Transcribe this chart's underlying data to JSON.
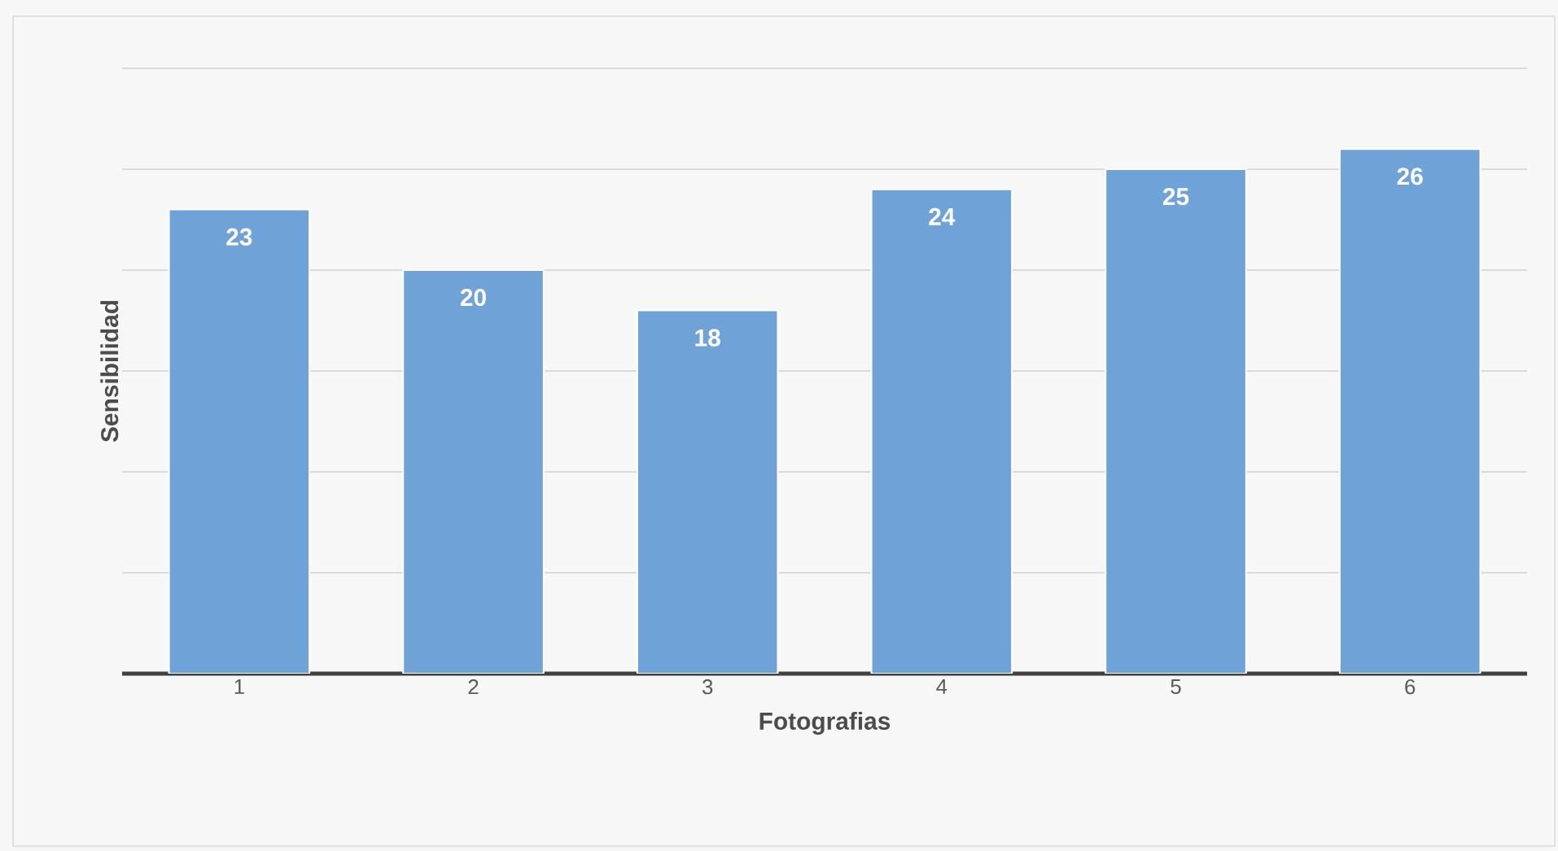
{
  "chart_data": {
    "type": "bar",
    "xlabel": "Fotografias",
    "ylabel": "Sensibilidad",
    "categories": [
      "1",
      "2",
      "3",
      "4",
      "5",
      "6"
    ],
    "values": [
      23,
      20,
      18,
      24,
      25,
      26
    ],
    "color": "#6fa3d8",
    "ylim": [
      0,
      30
    ],
    "yticks": [
      {
        "value": 0,
        "label": null
      },
      {
        "value": 5,
        "label": null
      },
      {
        "value": 10,
        "label": null
      },
      {
        "value": 15,
        "label": null
      },
      {
        "value": 20,
        "label": null
      },
      {
        "value": 25,
        "label": null
      },
      {
        "value": 30,
        "label": null
      }
    ],
    "tick_labels": "x",
    "grid": "y",
    "data_labels": true
  }
}
